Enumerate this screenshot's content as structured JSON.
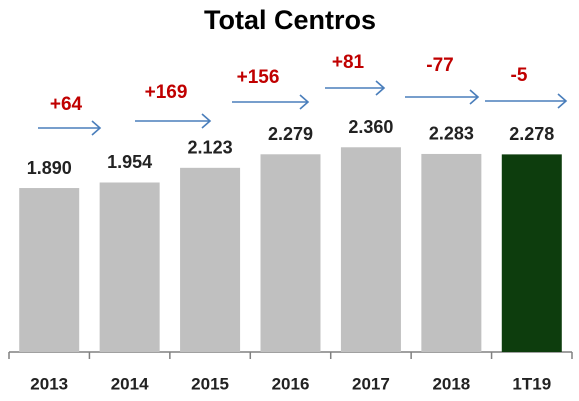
{
  "chart_data": {
    "type": "bar",
    "title": "Total Centros",
    "categories": [
      "2013",
      "2014",
      "2015",
      "2016",
      "2017",
      "2018",
      "1T19"
    ],
    "values": [
      1890,
      1954,
      2123,
      2279,
      2360,
      2283,
      2278
    ],
    "value_labels": [
      "1.890",
      "1.954",
      "2.123",
      "2.279",
      "2.360",
      "2.283",
      "2.278"
    ],
    "colors": [
      "#c0c0c0",
      "#c0c0c0",
      "#c0c0c0",
      "#c0c0c0",
      "#c0c0c0",
      "#c0c0c0",
      "#0d3d0d"
    ],
    "annotations": [
      "+64",
      "+169",
      "+156",
      "+81",
      "-77",
      "-5"
    ],
    "ylim": [
      0,
      4000
    ]
  }
}
